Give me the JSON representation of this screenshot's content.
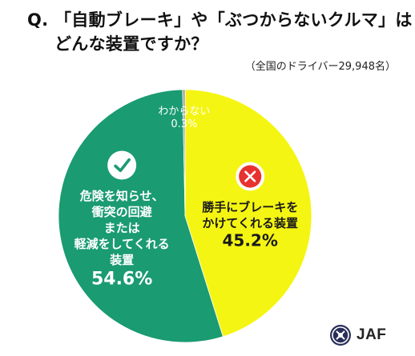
{
  "question": {
    "prefix": "Q.",
    "line1": "「自動ブレーキ」や「ぶつからないクルマ」は",
    "line2": "どんな装置ですか？"
  },
  "source_note": "（全国のドライバー29,948名）",
  "chart_data": {
    "type": "pie",
    "start_angle_deg": 0,
    "direction": "clockwise",
    "slices": [
      {
        "lines": [
          "勝手にブレーキを",
          "かけてくれる装置"
        ],
        "value": 45.2,
        "value_label": "45.2%",
        "color": "#f5f513",
        "text_color": "#1a1a1a",
        "icon": "cross-icon",
        "icon_color": "#e8322f"
      },
      {
        "lines": [
          "危険を知らせ、",
          "衝突の回避",
          "または",
          "軽減をしてくれる",
          "装置"
        ],
        "value": 54.6,
        "value_label": "54.6%",
        "color": "#1a9b72",
        "text_color": "#ffffff",
        "icon": "check-icon",
        "icon_color": "#1a9b72"
      },
      {
        "lines": [
          "わからない"
        ],
        "value": 0.3,
        "value_label": "0.3%",
        "color": "#9a9a9a",
        "text_color": "#ffffff",
        "icon": ""
      }
    ],
    "legend": "none"
  },
  "logo": {
    "text": "JAF",
    "mark_icon": "jaf-emblem-icon"
  }
}
